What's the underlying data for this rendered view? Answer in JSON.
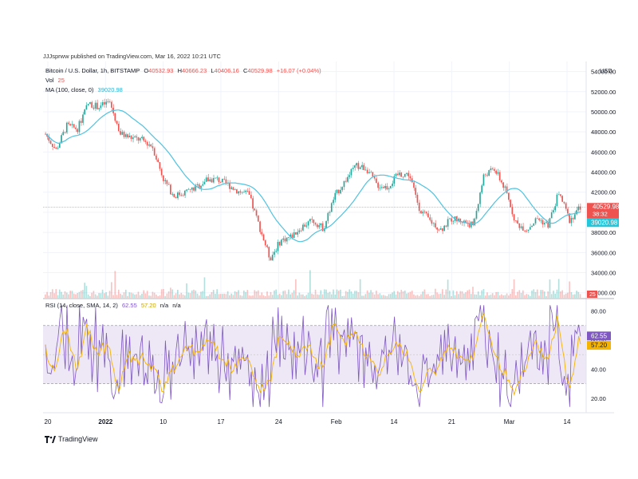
{
  "publisher": "JJJsprww published on TradingView.com, Mar 16, 2022 10:21 UTC",
  "legend": {
    "symbol": "Bitcoin / U.S. Dollar, 1h, BITSTAMP",
    "o_label": "O",
    "o": "40532.93",
    "h_label": "H",
    "h": "40666.23",
    "l_label": "L",
    "l": "40406.16",
    "c_label": "C",
    "c": "40529.98",
    "change": "+16.07 (+0.04%)",
    "vol_label": "Vol",
    "vol": "25",
    "ma_label": "MA (100, close, 0)",
    "ma": "39020.98",
    "rsi_label": "RSI (14, close, SMA, 14, 2)",
    "rsi": "62.55",
    "rsi_ma": "57.20",
    "na1": "n/a",
    "na2": "n/a"
  },
  "footer": {
    "brand": "TradingView"
  },
  "colors": {
    "up": "#26a69a",
    "down": "#ef5350",
    "ma": "#4fc3e0",
    "rsi": "#7e57c2",
    "rsi_ma": "#f5b400",
    "rsi_band": "#ede7f6"
  },
  "chart_data": [
    {
      "type": "candlestick",
      "title": "Bitcoin / U.S. Dollar, 1h, BITSTAMP",
      "y_unit": "USD",
      "ylim": [
        31500,
        55000
      ],
      "y_ticks": [
        32000,
        34000,
        36000,
        38000,
        40000,
        42000,
        44000,
        46000,
        48000,
        50000,
        52000,
        54000
      ],
      "x_tick_labels": [
        "20",
        "2022",
        "10",
        "17",
        "24",
        "Feb",
        "14",
        "21",
        "Mar",
        "14"
      ],
      "price_path": [
        [
          0,
          47800
        ],
        [
          2,
          46200
        ],
        [
          4,
          48600
        ],
        [
          6,
          48300
        ],
        [
          8,
          50800
        ],
        [
          10,
          50500
        ],
        [
          12,
          51000
        ],
        [
          14,
          47800
        ],
        [
          16,
          47400
        ],
        [
          18,
          47200
        ],
        [
          20,
          46600
        ],
        [
          22,
          43400
        ],
        [
          24,
          41600
        ],
        [
          26,
          42000
        ],
        [
          28,
          42400
        ],
        [
          30,
          43200
        ],
        [
          32,
          43300
        ],
        [
          34,
          42800
        ],
        [
          36,
          42100
        ],
        [
          38,
          41800
        ],
        [
          40,
          38600
        ],
        [
          42,
          35400
        ],
        [
          44,
          37200
        ],
        [
          46,
          37600
        ],
        [
          48,
          38600
        ],
        [
          50,
          39200
        ],
        [
          52,
          38400
        ],
        [
          54,
          41500
        ],
        [
          56,
          43100
        ],
        [
          58,
          44600
        ],
        [
          60,
          44400
        ],
        [
          62,
          42700
        ],
        [
          64,
          42500
        ],
        [
          66,
          43800
        ],
        [
          68,
          43800
        ],
        [
          70,
          40300
        ],
        [
          72,
          39100
        ],
        [
          74,
          38300
        ],
        [
          76,
          39400
        ],
        [
          78,
          39100
        ],
        [
          80,
          38700
        ],
        [
          82,
          43700
        ],
        [
          84,
          44300
        ],
        [
          86,
          42200
        ],
        [
          88,
          38900
        ],
        [
          90,
          38300
        ],
        [
          92,
          39400
        ],
        [
          94,
          38700
        ],
        [
          96,
          42000
        ],
        [
          98,
          39200
        ],
        [
          100,
          40530
        ]
      ],
      "ma_series": {
        "name": "MA (100, close, 0)",
        "last": 39020.98
      },
      "last_price": 40529.98,
      "price_label_time": "38:32",
      "volume_last": 25
    },
    {
      "type": "line",
      "title": "RSI (14, close, SMA, 14, 2)",
      "ylim": [
        10,
        88
      ],
      "y_ticks": [
        20,
        40,
        60,
        80
      ],
      "bands": [
        30,
        70
      ],
      "series": [
        {
          "name": "RSI",
          "last": 62.55
        },
        {
          "name": "RSI-based MA",
          "last": 57.2
        }
      ]
    }
  ]
}
